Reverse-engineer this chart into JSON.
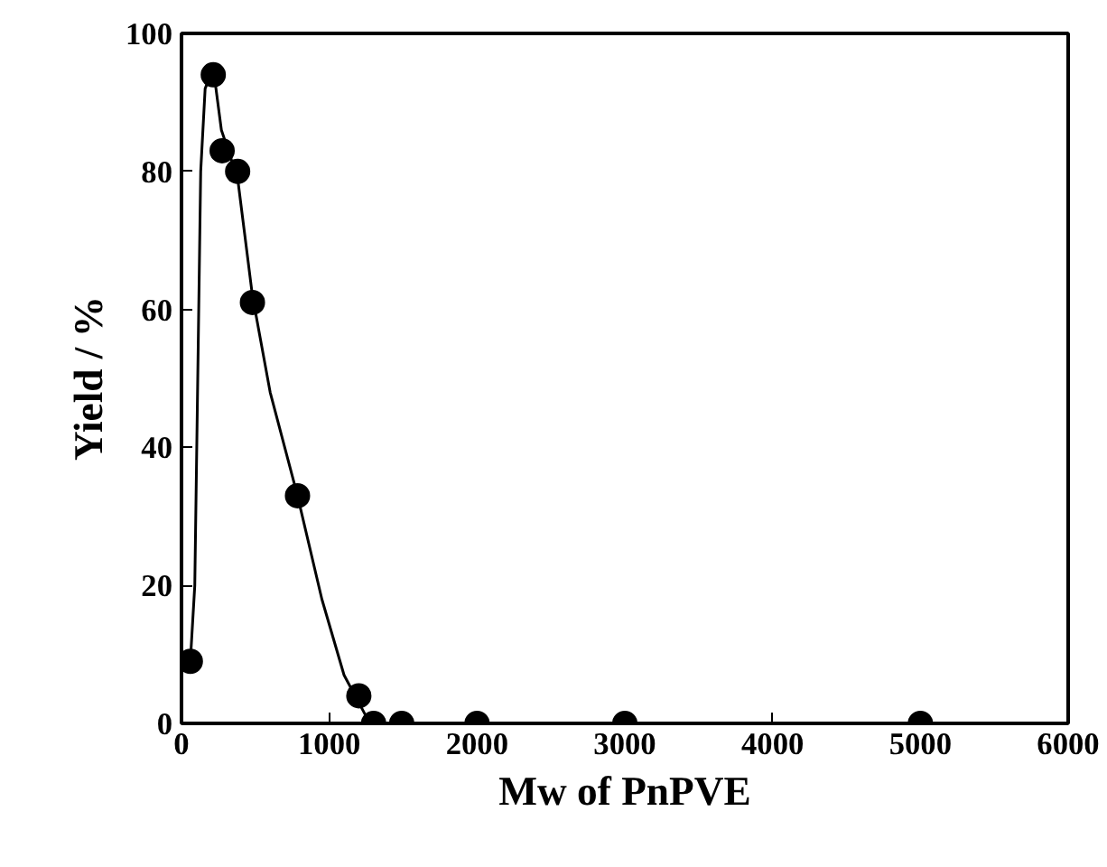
{
  "chart_data": {
    "type": "scatter",
    "xlabel": "Mw of PnPVE",
    "ylabel": "Yield / %",
    "xlim": [
      0,
      6000
    ],
    "ylim": [
      0,
      100
    ],
    "xticks": [
      0,
      1000,
      2000,
      3000,
      4000,
      5000,
      6000
    ],
    "yticks": [
      0,
      20,
      40,
      60,
      80,
      100
    ],
    "grid": false,
    "marker": "circle",
    "series": [
      {
        "color": "#000000",
        "x": [
          60,
          215,
          275,
          380,
          480,
          785,
          1200,
          1300,
          1490,
          2000,
          3000,
          5000
        ],
        "values": [
          9,
          94,
          83,
          80,
          61,
          33,
          4,
          0,
          0,
          0,
          0,
          0
        ]
      },
      {
        "type": "line",
        "color": "#000000",
        "line_style": "solid",
        "marker": "none",
        "x": [
          60,
          90,
          110,
          130,
          160,
          215,
          270,
          380,
          480,
          600,
          785,
          950,
          1100,
          1250,
          1300,
          1500,
          2000,
          3000,
          5000,
          5100
        ],
        "values": [
          9,
          20,
          50,
          80,
          92,
          95,
          86,
          79,
          62,
          48,
          33,
          18,
          7,
          1,
          0,
          0,
          0,
          0,
          0,
          0
        ]
      }
    ]
  }
}
